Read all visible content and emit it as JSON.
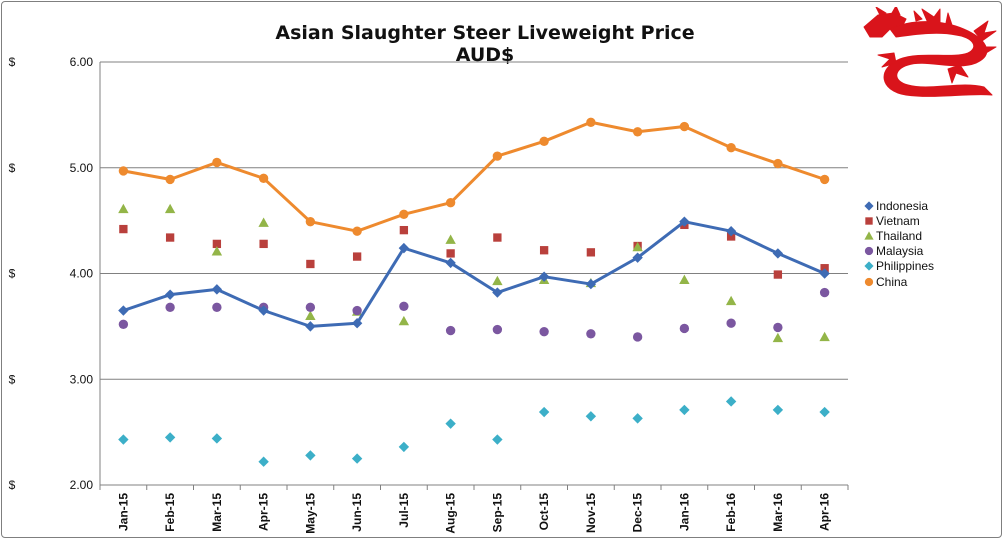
{
  "chart_data": {
    "type": "line",
    "title": "Asian Slaughter Steer Liveweight Price AUD$",
    "xlabel": "",
    "ylabel": "",
    "ylim": [
      2.0,
      6.0
    ],
    "y_ticks": [
      "2.00",
      "3.00",
      "4.00",
      "5.00",
      "6.00"
    ],
    "y_currency_symbol": "$",
    "grid": "horizontal",
    "legend_position": "right",
    "categories": [
      "Jan-15",
      "Feb-15",
      "Mar-15",
      "Apr-15",
      "May-15",
      "Jun-15",
      "Jul-15",
      "Aug-15",
      "Sep-15",
      "Oct-15",
      "Nov-15",
      "Dec-15",
      "Jan-16",
      "Feb-16",
      "Mar-16",
      "Apr-16"
    ],
    "series": [
      {
        "name": "Indonesia",
        "style": "line-marker",
        "marker": "diamond",
        "color": "#3E6BB4",
        "values": [
          3.65,
          3.8,
          3.85,
          3.65,
          3.5,
          3.53,
          4.24,
          4.1,
          3.82,
          3.97,
          3.9,
          4.15,
          4.49,
          4.4,
          4.19,
          4.0
        ]
      },
      {
        "name": "Vietnam",
        "style": "marker",
        "marker": "square",
        "color": "#B9403C",
        "values": [
          4.42,
          4.34,
          4.28,
          4.28,
          4.09,
          4.16,
          4.41,
          4.19,
          4.34,
          4.22,
          4.2,
          4.26,
          4.46,
          4.35,
          3.99,
          4.05
        ]
      },
      {
        "name": "Thailand",
        "style": "marker",
        "marker": "triangle",
        "color": "#93B548",
        "values": [
          4.61,
          4.61,
          4.21,
          4.48,
          3.6,
          3.64,
          3.55,
          4.32,
          3.93,
          3.94,
          3.91,
          4.25,
          3.94,
          3.74,
          3.39,
          3.4
        ]
      },
      {
        "name": "Malaysia",
        "style": "marker",
        "marker": "circle",
        "color": "#7B57A0",
        "values": [
          3.52,
          3.68,
          3.68,
          3.68,
          3.68,
          3.65,
          3.69,
          3.46,
          3.47,
          3.45,
          3.43,
          3.4,
          3.48,
          3.53,
          3.49,
          3.82
        ]
      },
      {
        "name": "Philippines",
        "style": "marker",
        "marker": "diamond",
        "color": "#3CAFC8",
        "values": [
          2.43,
          2.45,
          2.44,
          2.22,
          2.28,
          2.25,
          2.36,
          2.58,
          2.43,
          2.69,
          2.65,
          2.63,
          2.71,
          2.79,
          2.71,
          2.69
        ]
      },
      {
        "name": "China",
        "style": "line-marker",
        "marker": "circle",
        "color": "#EE8A2E",
        "values": [
          4.97,
          4.89,
          5.05,
          4.9,
          4.49,
          4.4,
          4.56,
          4.67,
          5.11,
          5.25,
          5.43,
          5.34,
          5.39,
          5.19,
          5.04,
          4.89
        ]
      }
    ]
  },
  "logo": {
    "name": "dragon",
    "color": "#D9141B"
  }
}
